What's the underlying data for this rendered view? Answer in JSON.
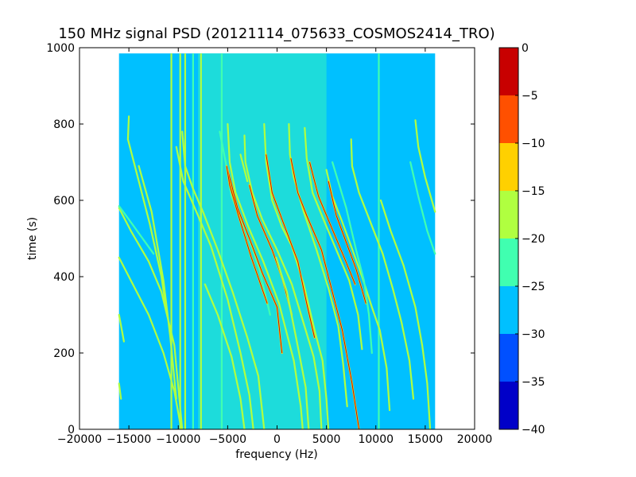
{
  "chart_data": {
    "type": "heatmap",
    "title": "150 MHz signal PSD (20121114_075633_COSMOS2414_TRO)",
    "xlabel": "frequency (Hz)",
    "ylabel": "time (s)",
    "xlim": [
      -20000,
      20000
    ],
    "ylim": [
      0,
      1000
    ],
    "data_extent": {
      "x": [
        -16000,
        16000
      ],
      "y": [
        0,
        985
      ]
    },
    "x_ticks": [
      -20000,
      -15000,
      -10000,
      -5000,
      0,
      5000,
      10000,
      15000,
      20000
    ],
    "x_tick_labels": [
      "−20000",
      "−15000",
      "−10000",
      "−5000",
      "0",
      "5000",
      "10000",
      "15000",
      "20000"
    ],
    "y_ticks": [
      0,
      200,
      400,
      600,
      800,
      1000
    ],
    "y_tick_labels": [
      "0",
      "200",
      "400",
      "600",
      "800",
      "1000"
    ],
    "background_level": "-30 to -25",
    "central_band": {
      "x": [
        -8000,
        5000
      ],
      "level": "-25 to -20"
    },
    "vertical_lines": [
      {
        "x": -10700,
        "level": "-20 to -15"
      },
      {
        "x": -9800,
        "level": "-20 to -15"
      },
      {
        "x": -9300,
        "level": "-20 to -15"
      },
      {
        "x": -8500,
        "level": "-25 to -20"
      },
      {
        "x": -7700,
        "level": "-20 to -15"
      },
      {
        "x": -5600,
        "level": "-25 to -20"
      },
      {
        "x": 10300,
        "level": "-25 to -20"
      }
    ],
    "traces": [
      {
        "points": [
          [
            -16000,
            580
          ],
          [
            -14800,
            520
          ],
          [
            -13000,
            440
          ],
          [
            -11700,
            360
          ],
          [
            -10400,
            220
          ],
          [
            -9600,
            0
          ]
        ],
        "level": "-20 to -15"
      },
      {
        "points": [
          [
            -16000,
            450
          ],
          [
            -14600,
            380
          ],
          [
            -13000,
            300
          ],
          [
            -11500,
            200
          ],
          [
            -10400,
            100
          ],
          [
            -9700,
            0
          ]
        ],
        "level": "-20 to -15"
      },
      {
        "points": [
          [
            -16000,
            300
          ],
          [
            -15500,
            230
          ]
        ],
        "level": "-20 to -15"
      },
      {
        "points": [
          [
            -16000,
            120
          ],
          [
            -15800,
            80
          ]
        ],
        "level": "-20 to -15"
      },
      {
        "points": [
          [
            -16000,
            585
          ],
          [
            -15000,
            550
          ],
          [
            -12500,
            460
          ]
        ],
        "level": "-25 to -20"
      },
      {
        "points": [
          [
            -14000,
            690
          ],
          [
            -12700,
            570
          ],
          [
            -11500,
            390
          ],
          [
            -10800,
            240
          ],
          [
            -10200,
            80
          ]
        ],
        "level": "-20 to -15"
      },
      {
        "points": [
          [
            -15000,
            820
          ],
          [
            -15100,
            760
          ],
          [
            -14000,
            650
          ],
          [
            -12900,
            540
          ],
          [
            -11700,
            400
          ],
          [
            -11200,
            310
          ]
        ],
        "level": "-20 to -15"
      },
      {
        "points": [
          [
            -9600,
            780
          ],
          [
            -9300,
            690
          ],
          [
            -8500,
            630
          ],
          [
            -7500,
            570
          ],
          [
            -6000,
            470
          ],
          [
            -4500,
            360
          ],
          [
            -3000,
            240
          ],
          [
            -1900,
            140
          ],
          [
            -1300,
            0
          ]
        ],
        "level": "-20 to -15"
      },
      {
        "points": [
          [
            -10200,
            740
          ],
          [
            -9500,
            650
          ],
          [
            -8000,
            560
          ],
          [
            -6700,
            480
          ],
          [
            -5000,
            340
          ],
          [
            -3700,
            200
          ],
          [
            -2800,
            90
          ],
          [
            -2400,
            0
          ]
        ],
        "level": "-20 to -15"
      },
      {
        "points": [
          [
            -7300,
            380
          ],
          [
            -6000,
            300
          ],
          [
            -4600,
            190
          ],
          [
            -3700,
            80
          ],
          [
            -3300,
            0
          ]
        ],
        "level": "-20 to -15"
      },
      {
        "points": [
          [
            -5000,
            800
          ],
          [
            -4800,
            700
          ],
          [
            -4200,
            620
          ],
          [
            -2900,
            530
          ],
          [
            -1400,
            440
          ],
          [
            200,
            330
          ],
          [
            1700,
            180
          ],
          [
            2400,
            60
          ],
          [
            2600,
            0
          ]
        ],
        "level": "-20 to -15"
      },
      {
        "points": [
          [
            -5800,
            780
          ],
          [
            -5200,
            700
          ],
          [
            -4600,
            610
          ],
          [
            -3000,
            510
          ],
          [
            -1800,
            420
          ],
          [
            -700,
            300
          ]
        ],
        "level": "-25 to -20"
      },
      {
        "points": [
          [
            -3300,
            770
          ],
          [
            -3200,
            700
          ],
          [
            -2500,
            620
          ],
          [
            -1500,
            550
          ],
          [
            0,
            470
          ],
          [
            1500,
            380
          ],
          [
            2900,
            260
          ],
          [
            3700,
            190
          ],
          [
            4300,
            100
          ],
          [
            4500,
            0
          ]
        ],
        "level": "-20 to -15"
      },
      {
        "points": [
          [
            -3700,
            720
          ],
          [
            -3000,
            650
          ]
        ],
        "level": "-20 to -15"
      },
      {
        "points": [
          [
            -5000,
            680
          ],
          [
            -4000,
            580
          ],
          [
            -2500,
            480
          ],
          [
            -1500,
            410
          ],
          [
            0,
            320
          ],
          [
            500,
            200
          ]
        ],
        "level": "-15 to -10"
      },
      {
        "points": [
          [
            -1300,
            800
          ],
          [
            -1100,
            700
          ],
          [
            -500,
            600
          ],
          [
            500,
            530
          ],
          [
            1500,
            480
          ],
          [
            2700,
            380
          ],
          [
            3800,
            260
          ],
          [
            4600,
            180
          ],
          [
            5000,
            80
          ],
          [
            5200,
            0
          ]
        ],
        "level": "-20 to -15"
      },
      {
        "points": [
          [
            -5100,
            690
          ],
          [
            -4800,
            640
          ],
          [
            -3900,
            560
          ],
          [
            -2600,
            450
          ],
          [
            -1000,
            330
          ]
        ],
        "level": "-15 to -10"
      },
      {
        "points": [
          [
            -2800,
            640
          ],
          [
            -2000,
            560
          ],
          [
            -500,
            470
          ],
          [
            600,
            390
          ],
          [
            1500,
            300
          ]
        ],
        "level": "-15 to -10"
      },
      {
        "points": [
          [
            -1100,
            720
          ],
          [
            -500,
            620
          ],
          [
            800,
            530
          ],
          [
            2100,
            440
          ],
          [
            3000,
            330
          ],
          [
            3800,
            240
          ]
        ],
        "level": "-15 to -10"
      },
      {
        "points": [
          [
            -100,
            450
          ],
          [
            1000,
            360
          ],
          [
            2000,
            230
          ],
          [
            2900,
            110
          ],
          [
            3200,
            0
          ]
        ],
        "level": "-20 to -15"
      },
      {
        "points": [
          [
            1200,
            800
          ],
          [
            1300,
            720
          ],
          [
            1700,
            660
          ],
          [
            2700,
            570
          ],
          [
            4000,
            470
          ],
          [
            5200,
            370
          ],
          [
            6200,
            270
          ],
          [
            6700,
            170
          ],
          [
            7100,
            60
          ]
        ],
        "level": "-20 to -15"
      },
      {
        "points": [
          [
            1400,
            710
          ],
          [
            2100,
            620
          ],
          [
            3000,
            560
          ],
          [
            4500,
            470
          ],
          [
            5600,
            360
          ],
          [
            6600,
            260
          ],
          [
            7600,
            120
          ],
          [
            8300,
            0
          ]
        ],
        "level": "-15 to -10"
      },
      {
        "points": [
          [
            2800,
            790
          ],
          [
            3000,
            710
          ],
          [
            3600,
            620
          ],
          [
            4700,
            550
          ],
          [
            6000,
            470
          ],
          [
            7300,
            390
          ],
          [
            8200,
            300
          ],
          [
            8600,
            210
          ]
        ],
        "level": "-20 to -15"
      },
      {
        "points": [
          [
            3300,
            700
          ],
          [
            4200,
            610
          ],
          [
            5500,
            530
          ],
          [
            6800,
            450
          ],
          [
            7900,
            380
          ]
        ],
        "level": "-15 to -10"
      },
      {
        "points": [
          [
            5000,
            680
          ],
          [
            5600,
            610
          ],
          [
            6500,
            550
          ],
          [
            7500,
            480
          ],
          [
            8600,
            400
          ],
          [
            9600,
            320
          ],
          [
            10400,
            260
          ],
          [
            11100,
            160
          ],
          [
            11400,
            50
          ]
        ],
        "level": "-20 to -15"
      },
      {
        "points": [
          [
            5200,
            650
          ],
          [
            6000,
            560
          ],
          [
            7000,
            490
          ],
          [
            8000,
            420
          ],
          [
            9000,
            330
          ]
        ],
        "level": "-15 to -10"
      },
      {
        "points": [
          [
            7500,
            760
          ],
          [
            7600,
            690
          ],
          [
            8300,
            620
          ],
          [
            9500,
            540
          ],
          [
            10700,
            460
          ],
          [
            11700,
            370
          ],
          [
            12600,
            280
          ],
          [
            13400,
            180
          ],
          [
            13800,
            80
          ]
        ],
        "level": "-20 to -15"
      },
      {
        "points": [
          [
            5600,
            700
          ],
          [
            7000,
            580
          ],
          [
            8000,
            470
          ],
          [
            8800,
            390
          ],
          [
            9300,
            300
          ],
          [
            9600,
            200
          ]
        ],
        "level": "-25 to -20"
      },
      {
        "points": [
          [
            10500,
            600
          ],
          [
            11500,
            520
          ],
          [
            12800,
            430
          ],
          [
            14000,
            320
          ],
          [
            14700,
            220
          ],
          [
            15200,
            120
          ],
          [
            15500,
            0
          ]
        ],
        "level": "-20 to -15"
      },
      {
        "points": [
          [
            14000,
            810
          ],
          [
            14300,
            740
          ],
          [
            15000,
            660
          ],
          [
            16000,
            570
          ]
        ],
        "level": "-20 to -15"
      },
      {
        "points": [
          [
            13500,
            700
          ],
          [
            14300,
            610
          ],
          [
            15200,
            520
          ],
          [
            16000,
            460
          ]
        ],
        "level": "-25 to -20"
      }
    ],
    "colorbar": {
      "ticks": [
        0,
        -5,
        -10,
        -15,
        -20,
        -25,
        -30,
        -35,
        -40
      ],
      "tick_labels": [
        "0",
        "−5",
        "−10",
        "−15",
        "−20",
        "−25",
        "−30",
        "−35",
        "−40"
      ],
      "levels": [
        {
          "range": "-40 to -35",
          "color": "#0000c8"
        },
        {
          "range": "-35 to -30",
          "color": "#0050ff"
        },
        {
          "range": "-30 to -25",
          "color": "#00c0ff"
        },
        {
          "range": "-25 to -20",
          "color": "#40ffb0"
        },
        {
          "range": "-20 to -15",
          "color": "#b0ff40"
        },
        {
          "range": "-15 to -10",
          "color": "#ffd000"
        },
        {
          "range": "-10 to -5",
          "color": "#ff5000"
        },
        {
          "range": "-5 to 0",
          "color": "#c80000"
        }
      ]
    }
  }
}
